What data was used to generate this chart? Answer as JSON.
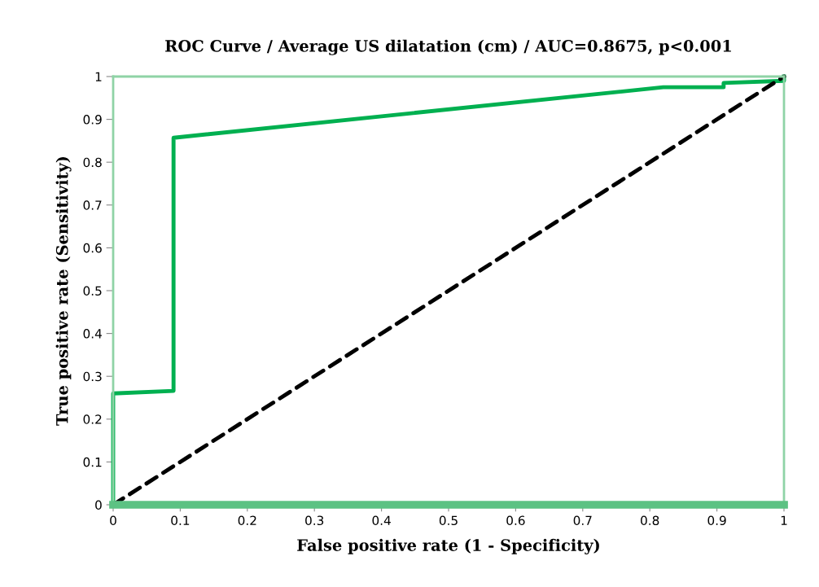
{
  "chart_data": {
    "type": "line",
    "title": "ROC Curve / Average US dilatation (cm) / AUC=0.8675, p<0.001",
    "xlabel": "False positive rate (1 - Specificity)",
    "ylabel": "True positive rate (Sensitivity)",
    "series": [
      {
        "color": "#00b050",
        "line_style": "solid",
        "x": [
          0,
          0,
          0.09,
          0.09,
          0.82,
          0.91,
          0.91,
          1,
          1
        ],
        "values": [
          0,
          0.26,
          0.266,
          0.857,
          0.975,
          0.975,
          0.985,
          0.99,
          1
        ]
      },
      {
        "color": "#000000",
        "line_style": "dashed",
        "x": [
          0,
          1
        ],
        "values": [
          0,
          1
        ]
      }
    ],
    "xlim": [
      0,
      1
    ],
    "ylim": [
      0,
      1
    ],
    "xticks": [
      0,
      0.1,
      0.2,
      0.3,
      0.4,
      0.5,
      0.6,
      0.7,
      0.8,
      0.9,
      1
    ],
    "yticks": [
      0,
      0.1,
      0.2,
      0.3,
      0.4,
      0.5,
      0.6,
      0.7,
      0.8,
      0.9,
      1
    ],
    "grid": false,
    "legend": false,
    "marker": "none"
  }
}
